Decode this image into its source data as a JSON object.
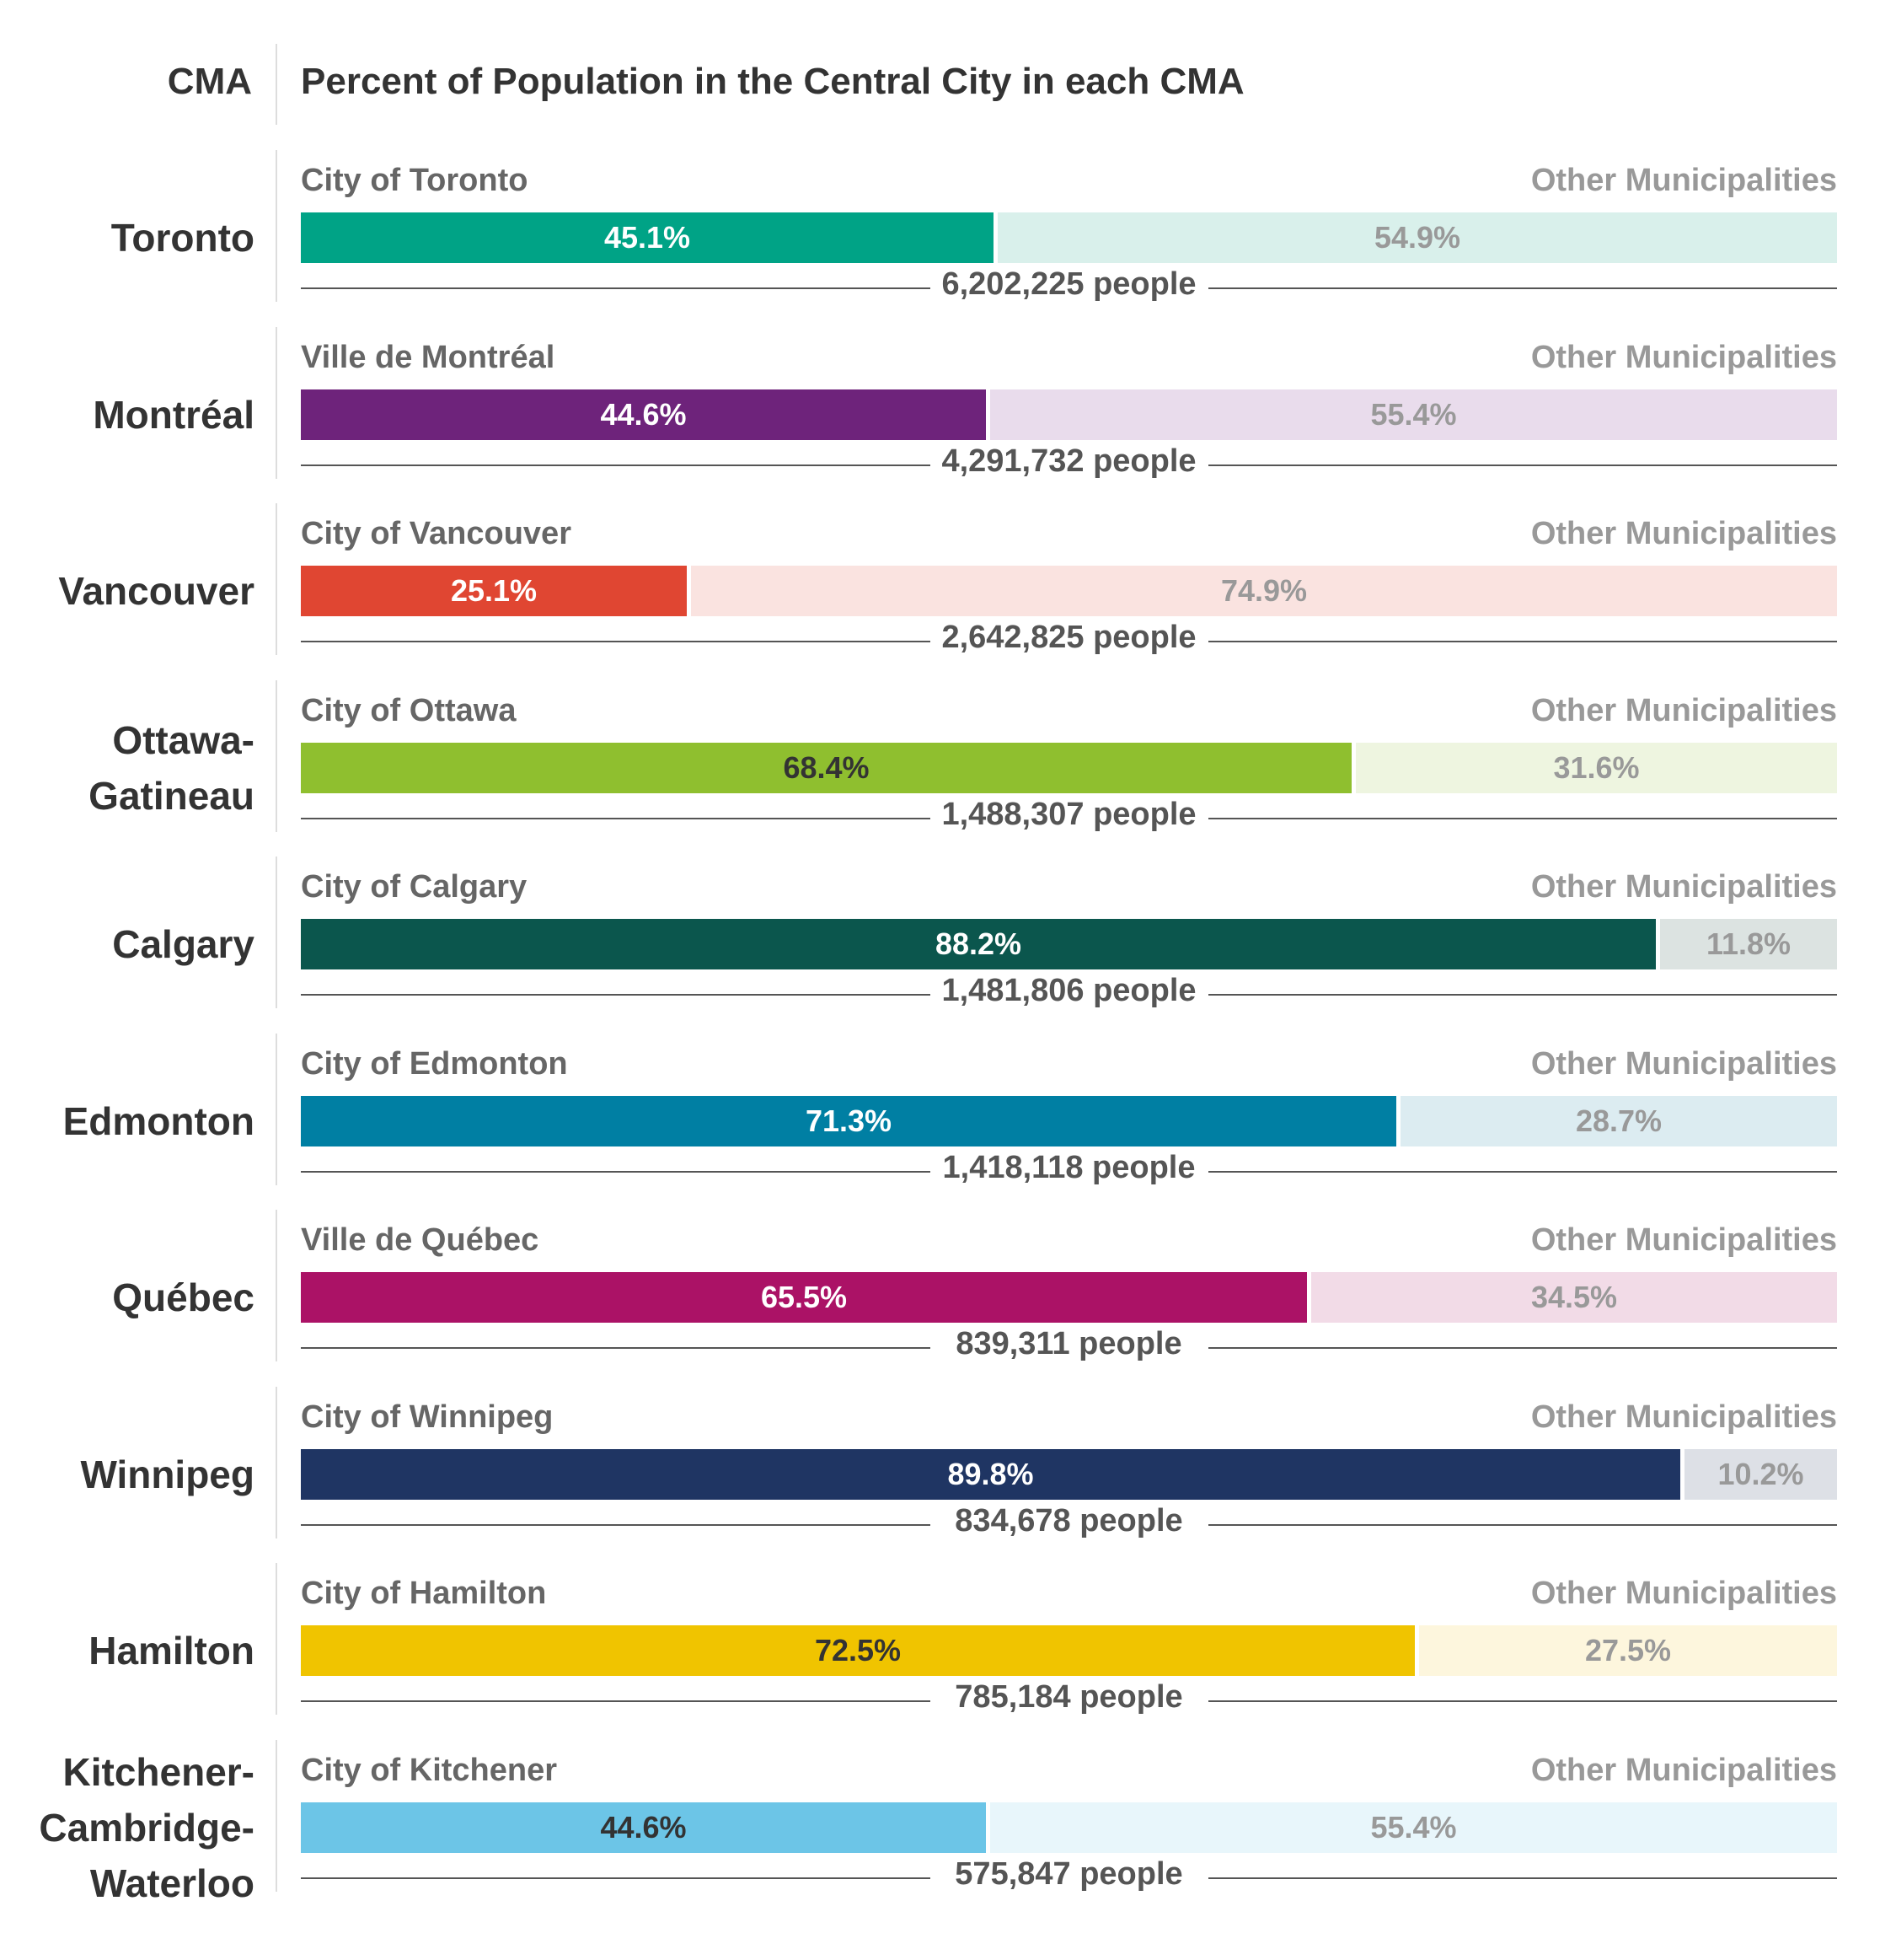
{
  "header": {
    "cma_label": "CMA",
    "title": "Percent of Population in the Central City in each CMA"
  },
  "chart_data": {
    "type": "bar",
    "stacked": true,
    "orientation": "horizontal",
    "title": "Percent of Population in the Central City in each CMA",
    "category_axis_label": "CMA",
    "xlim": [
      0,
      100
    ],
    "grid": false,
    "rows": [
      {
        "cma_lines": [
          "Toronto"
        ],
        "central_name": "City of Toronto",
        "other_name": "Other Municipalities",
        "central_pct": 45.1,
        "other_pct": 54.9,
        "central_label": "45.1%",
        "other_label": "54.9%",
        "total": "6,202,225 people",
        "color": "#00a386",
        "light": "#d9f0eb",
        "central_text_color": "#ffffff"
      },
      {
        "cma_lines": [
          "Montréal"
        ],
        "central_name": "Ville de Montréal",
        "other_name": "Other Municipalities",
        "central_pct": 44.6,
        "other_pct": 55.4,
        "central_label": "44.6%",
        "other_label": "55.4%",
        "total": "4,291,732 people",
        "color": "#6e237b",
        "light": "#e9dcec",
        "central_text_color": "#ffffff"
      },
      {
        "cma_lines": [
          "Vancouver"
        ],
        "central_name": "City of Vancouver",
        "other_name": "Other Municipalities",
        "central_pct": 25.1,
        "other_pct": 74.9,
        "central_label": "25.1%",
        "other_label": "74.9%",
        "total": "2,642,825 people",
        "color": "#e04632",
        "light": "#fae3e0",
        "central_text_color": "#ffffff"
      },
      {
        "cma_lines": [
          "Ottawa-",
          "Gatineau"
        ],
        "central_name": "City of Ottawa",
        "other_name": "Other Municipalities",
        "central_pct": 68.4,
        "other_pct": 31.6,
        "central_label": "68.4%",
        "other_label": "31.6%",
        "total": "1,488,307 people",
        "color": "#8fbf2f",
        "light": "#eef5e0",
        "central_text_color": "#333333"
      },
      {
        "cma_lines": [
          "Calgary"
        ],
        "central_name": "City of Calgary",
        "other_name": "Other Municipalities",
        "central_pct": 88.2,
        "other_pct": 11.8,
        "central_label": "88.2%",
        "other_label": "11.8%",
        "total": "1,481,806 people",
        "color": "#0b564d",
        "light": "#dce3e1",
        "central_text_color": "#ffffff"
      },
      {
        "cma_lines": [
          "Edmonton"
        ],
        "central_name": "City of Edmonton",
        "other_name": "Other Municipalities",
        "central_pct": 71.3,
        "other_pct": 28.7,
        "central_label": "71.3%",
        "other_label": "28.7%",
        "total": "1,418,118 people",
        "color": "#007fa3",
        "light": "#dcecf1",
        "central_text_color": "#ffffff"
      },
      {
        "cma_lines": [
          "Québec"
        ],
        "central_name": "Ville de Québec",
        "other_name": "Other Municipalities",
        "central_pct": 65.5,
        "other_pct": 34.5,
        "central_label": "65.5%",
        "other_label": "34.5%",
        "total": "839,311 people",
        "color": "#ab1266",
        "light": "#f2dbe7",
        "central_text_color": "#ffffff"
      },
      {
        "cma_lines": [
          "Winnipeg"
        ],
        "central_name": "City of Winnipeg",
        "other_name": "Other Municipalities",
        "central_pct": 89.8,
        "other_pct": 10.2,
        "central_label": "89.8%",
        "other_label": "10.2%",
        "total": "834,678 people",
        "color": "#1f3563",
        "light": "#dde0e6",
        "central_text_color": "#ffffff"
      },
      {
        "cma_lines": [
          "Hamilton"
        ],
        "central_name": "City of Hamilton",
        "other_name": "Other Municipalities",
        "central_pct": 72.5,
        "other_pct": 27.5,
        "central_label": "72.5%",
        "other_label": "27.5%",
        "total": "785,184 people",
        "color": "#f0c400",
        "light": "#fdf6dd",
        "central_text_color": "#333333"
      },
      {
        "cma_lines": [
          "Kitchener-",
          "Cambridge-",
          "Waterloo"
        ],
        "central_name": "City of Kitchener",
        "other_name": "Other Municipalities",
        "central_pct": 44.6,
        "other_pct": 55.4,
        "central_label": "44.6%",
        "other_label": "55.4%",
        "total": "575,847 people",
        "color": "#6cc5e7",
        "light": "#e8f6fb",
        "central_text_color": "#333333"
      }
    ]
  }
}
